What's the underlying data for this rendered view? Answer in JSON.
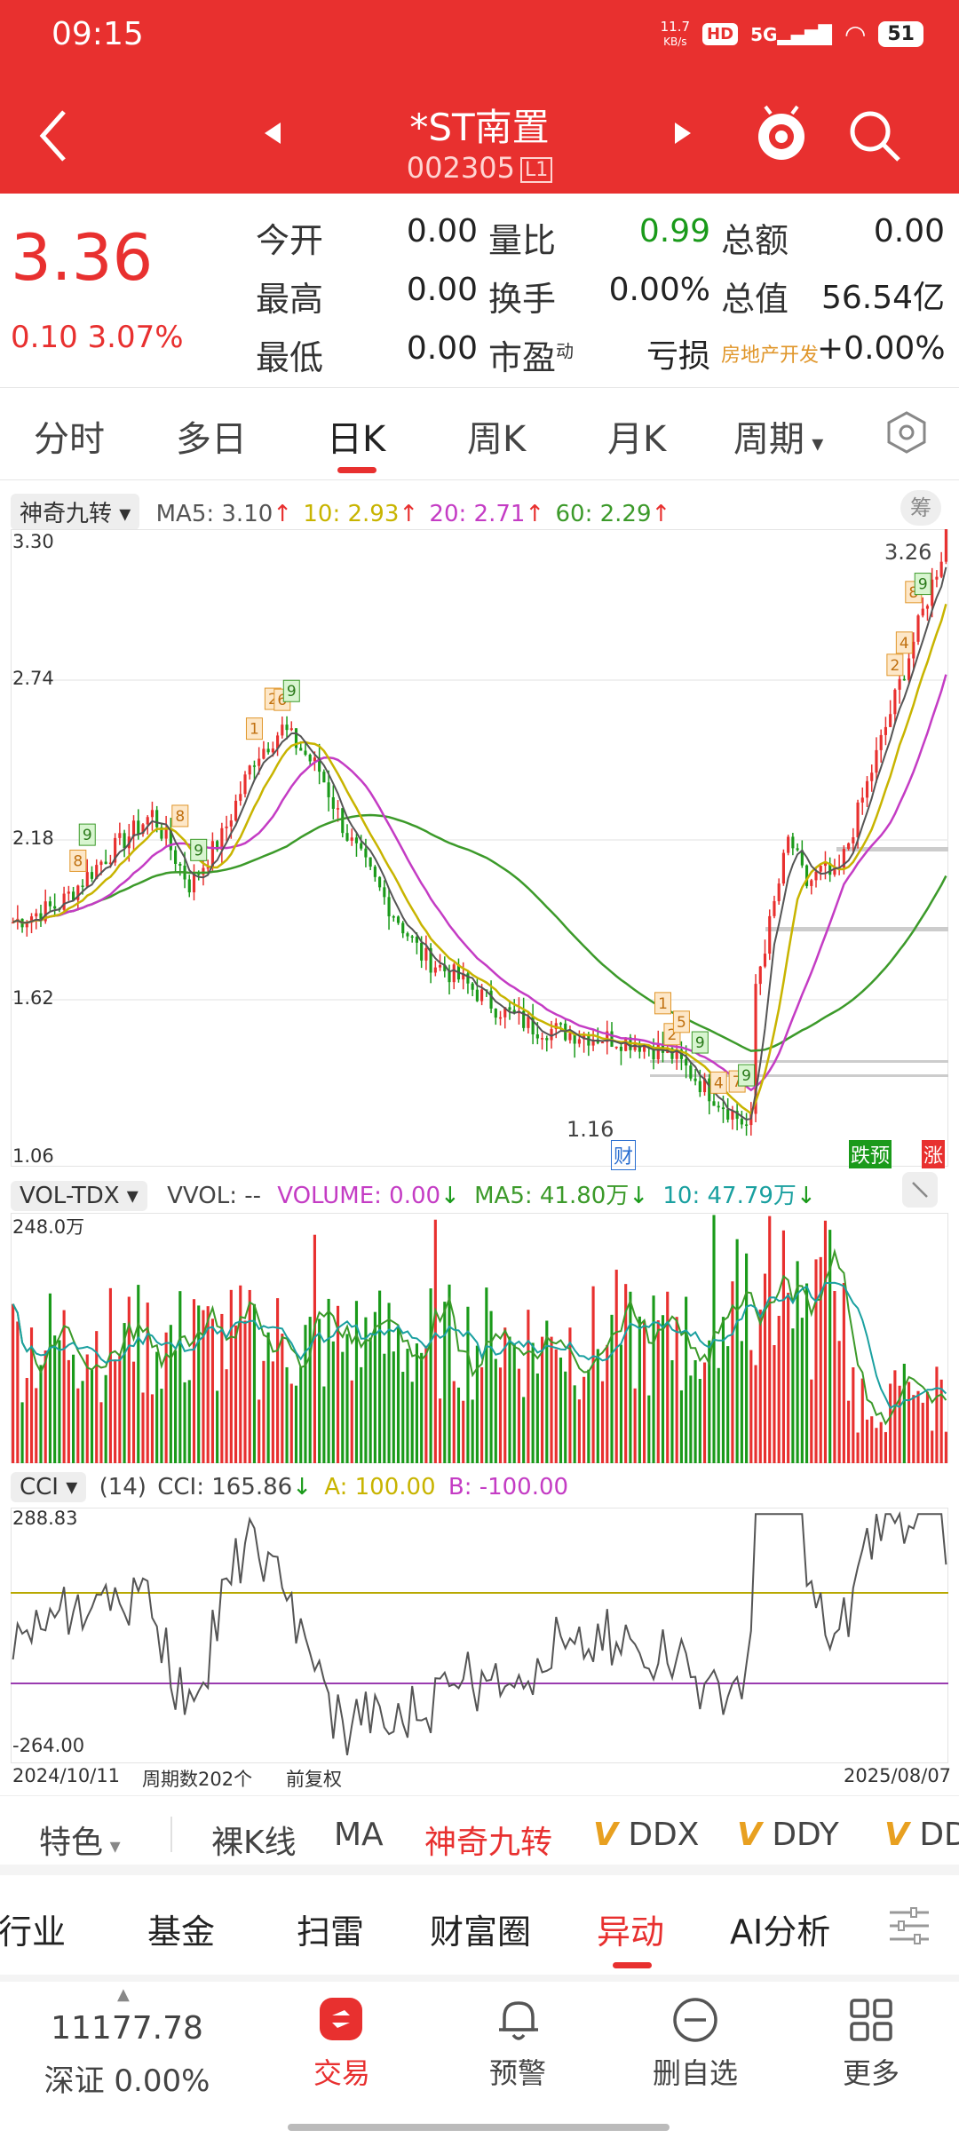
{
  "status": {
    "time": "09:15",
    "speed": "11.7",
    "speed_unit": "KB/s",
    "hd": "HD",
    "network": "5G",
    "battery": "51"
  },
  "header": {
    "title": "*ST南置",
    "code": "002305",
    "code_badge": "L1"
  },
  "quote": {
    "price": "3.36",
    "change": "0.10",
    "change_pct": "3.07%",
    "fields": [
      {
        "label": "今开",
        "value": "0.00"
      },
      {
        "label": "最高",
        "value": "0.00"
      },
      {
        "label": "最低",
        "value": "0.00"
      },
      {
        "label": "量比",
        "value": "0.99"
      },
      {
        "label": "换手",
        "value": "0.00%"
      },
      {
        "label": "市盈",
        "label_sup": "动",
        "value": "亏损"
      },
      {
        "label": "总额",
        "value": "0.00"
      },
      {
        "label": "总值",
        "value": "56.54亿"
      },
      {
        "label": "房地产开发",
        "value": "+0.00%"
      }
    ]
  },
  "tabs": [
    "分时",
    "多日",
    "日K",
    "周K",
    "月K",
    "周期"
  ],
  "active_tab": "日K",
  "kline": {
    "indicator": "神奇九转",
    "ma5": "MA5: 3.10",
    "ma10": "10: 2.93",
    "ma20": "20: 2.71",
    "ma60": "60: 2.29",
    "chip_btn": "筹",
    "y_labels": [
      "3.30",
      "2.74",
      "2.18",
      "1.62",
      "1.06"
    ],
    "high_label": "3.26",
    "low_label": "1.16",
    "cai": "财",
    "die_yu": "跌预",
    "zhang": "涨",
    "colors": {
      "up": "#e8302f",
      "down": "#1a9a1a",
      "ma5": "#555555",
      "ma10": "#c8b400",
      "ma20": "#c43cc4",
      "ma60": "#3c9a2a"
    }
  },
  "volume": {
    "indicator": "VOL-TDX",
    "vvol": "VVOL: --",
    "volume": "VOLUME: 0.00",
    "ma5": "MA5: 41.80万",
    "ma10": "10: 47.79万",
    "y_top": "248.0万"
  },
  "cci": {
    "indicator": "CCI",
    "period": "(14)",
    "cci_val": "CCI: 165.86",
    "a": "A: 100.00",
    "b": "B: -100.00",
    "y_top": "288.83",
    "y_bottom": "-264.00"
  },
  "footer_axis": {
    "start": "2024/10/11",
    "periods": "周期数202个",
    "adjust": "前复权",
    "end": "2025/08/07"
  },
  "features": {
    "special": "特色",
    "items": [
      "裸K线",
      "MA",
      "神奇九转",
      "DDX",
      "DDY",
      "DD"
    ],
    "active": "神奇九转",
    "v_mark": "V"
  },
  "bottom_tabs": [
    "行业",
    "基金",
    "扫雷",
    "财富圈",
    "异动",
    "AI分析"
  ],
  "active_bottom_tab": "异动",
  "bottom_nav": {
    "index_value": "11177.78",
    "index_name": "深证 0.00%",
    "items": [
      "交易",
      "预警",
      "删自选",
      "更多"
    ]
  }
}
